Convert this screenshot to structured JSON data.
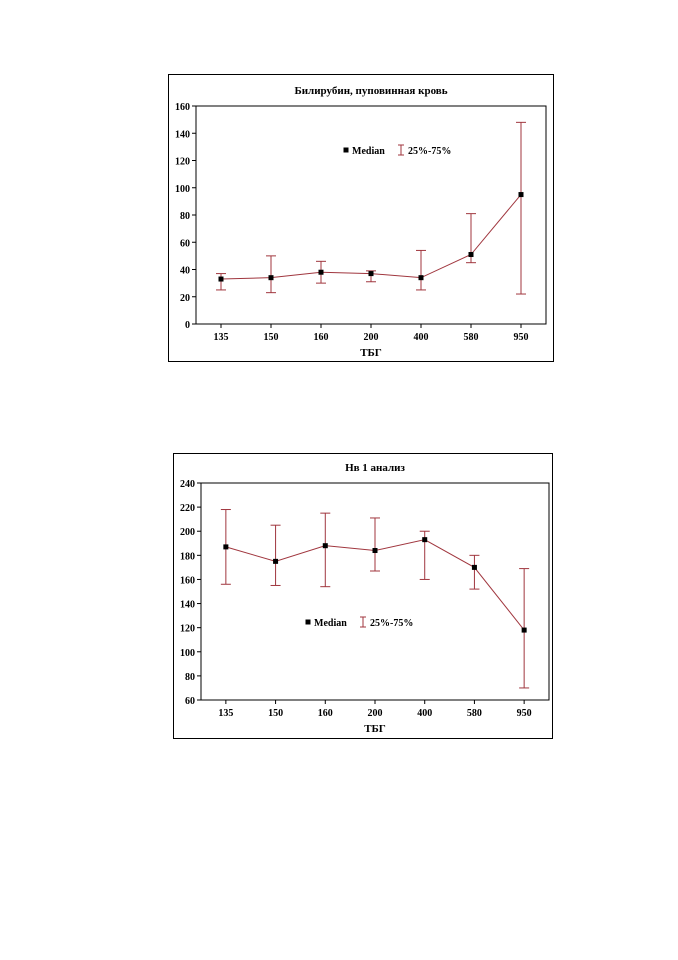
{
  "chart_data": [
    {
      "type": "line",
      "title": "Билирубин, пуповинная кровь",
      "xlabel": "ТБГ",
      "ylabel": "",
      "categories": [
        "135",
        "150",
        "160",
        "200",
        "400",
        "580",
        "950"
      ],
      "ylim": [
        0,
        160
      ],
      "yticks": [
        0,
        20,
        40,
        60,
        80,
        100,
        120,
        140,
        160
      ],
      "legend_position": "top-center",
      "series": [
        {
          "name": "Median",
          "values": [
            33,
            34,
            38,
            37,
            34,
            51,
            95
          ]
        },
        {
          "name": "25%-75%",
          "lower": [
            25,
            23,
            30,
            31,
            25,
            45,
            22
          ],
          "upper": [
            37,
            50,
            46,
            39,
            54,
            81,
            148
          ]
        }
      ]
    },
    {
      "type": "line",
      "title": "Нв 1 анализ",
      "xlabel": "ТБГ",
      "ylabel": "",
      "categories": [
        "135",
        "150",
        "160",
        "200",
        "400",
        "580",
        "950"
      ],
      "ylim": [
        60,
        240
      ],
      "yticks": [
        60,
        80,
        100,
        120,
        140,
        160,
        180,
        200,
        220,
        240
      ],
      "legend_position": "center",
      "series": [
        {
          "name": "Median",
          "values": [
            187,
            175,
            188,
            184,
            193,
            170,
            118
          ]
        },
        {
          "name": "25%-75%",
          "lower": [
            156,
            155,
            154,
            167,
            160,
            152,
            70
          ],
          "upper": [
            218,
            205,
            215,
            211,
            200,
            180,
            169
          ]
        }
      ]
    }
  ],
  "style": {
    "line_color": "#a0363e",
    "marker_color": "#000000",
    "axis_color": "#000000"
  }
}
